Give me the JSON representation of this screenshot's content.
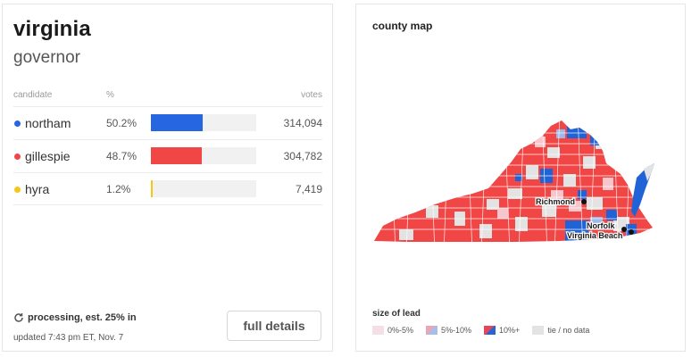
{
  "left": {
    "state": "virginia",
    "race": "governor",
    "columns": {
      "candidate": "candidate",
      "pct": "%",
      "votes": "votes"
    },
    "candidates": [
      {
        "name": "northam",
        "pct": "50.2%",
        "pct_value": 50.2,
        "votes": "314,094",
        "color": "#2666e0"
      },
      {
        "name": "gillespie",
        "pct": "48.7%",
        "pct_value": 48.7,
        "votes": "304,782",
        "color": "#f04646"
      },
      {
        "name": "hyra",
        "pct": "1.2%",
        "pct_value": 1.2,
        "votes": "7,419",
        "color": "#f5c518"
      }
    ],
    "status": "processing, est. 25% in",
    "updated": "updated 7:43 pm ET, Nov. 7",
    "details_button": "full details"
  },
  "right": {
    "title": "county map",
    "cities": [
      "Richmond",
      "Norfolk",
      "Virginia Beach"
    ],
    "legend_title": "size of lead",
    "legend": [
      {
        "label": "0%-5%",
        "color": "#f4dfe6"
      },
      {
        "label": "5%-10%",
        "color": "#e8a6b8"
      },
      {
        "label": "10%+",
        "color": "#e2475a"
      },
      {
        "label": "tie / no data",
        "color": "#e3e3e3"
      }
    ],
    "colors": {
      "dem": "#1f63d6",
      "dem_light": "#9db8ea",
      "rep": "#f04646",
      "rep_light": "#f6c6cc",
      "none": "#e3e3e3"
    }
  }
}
